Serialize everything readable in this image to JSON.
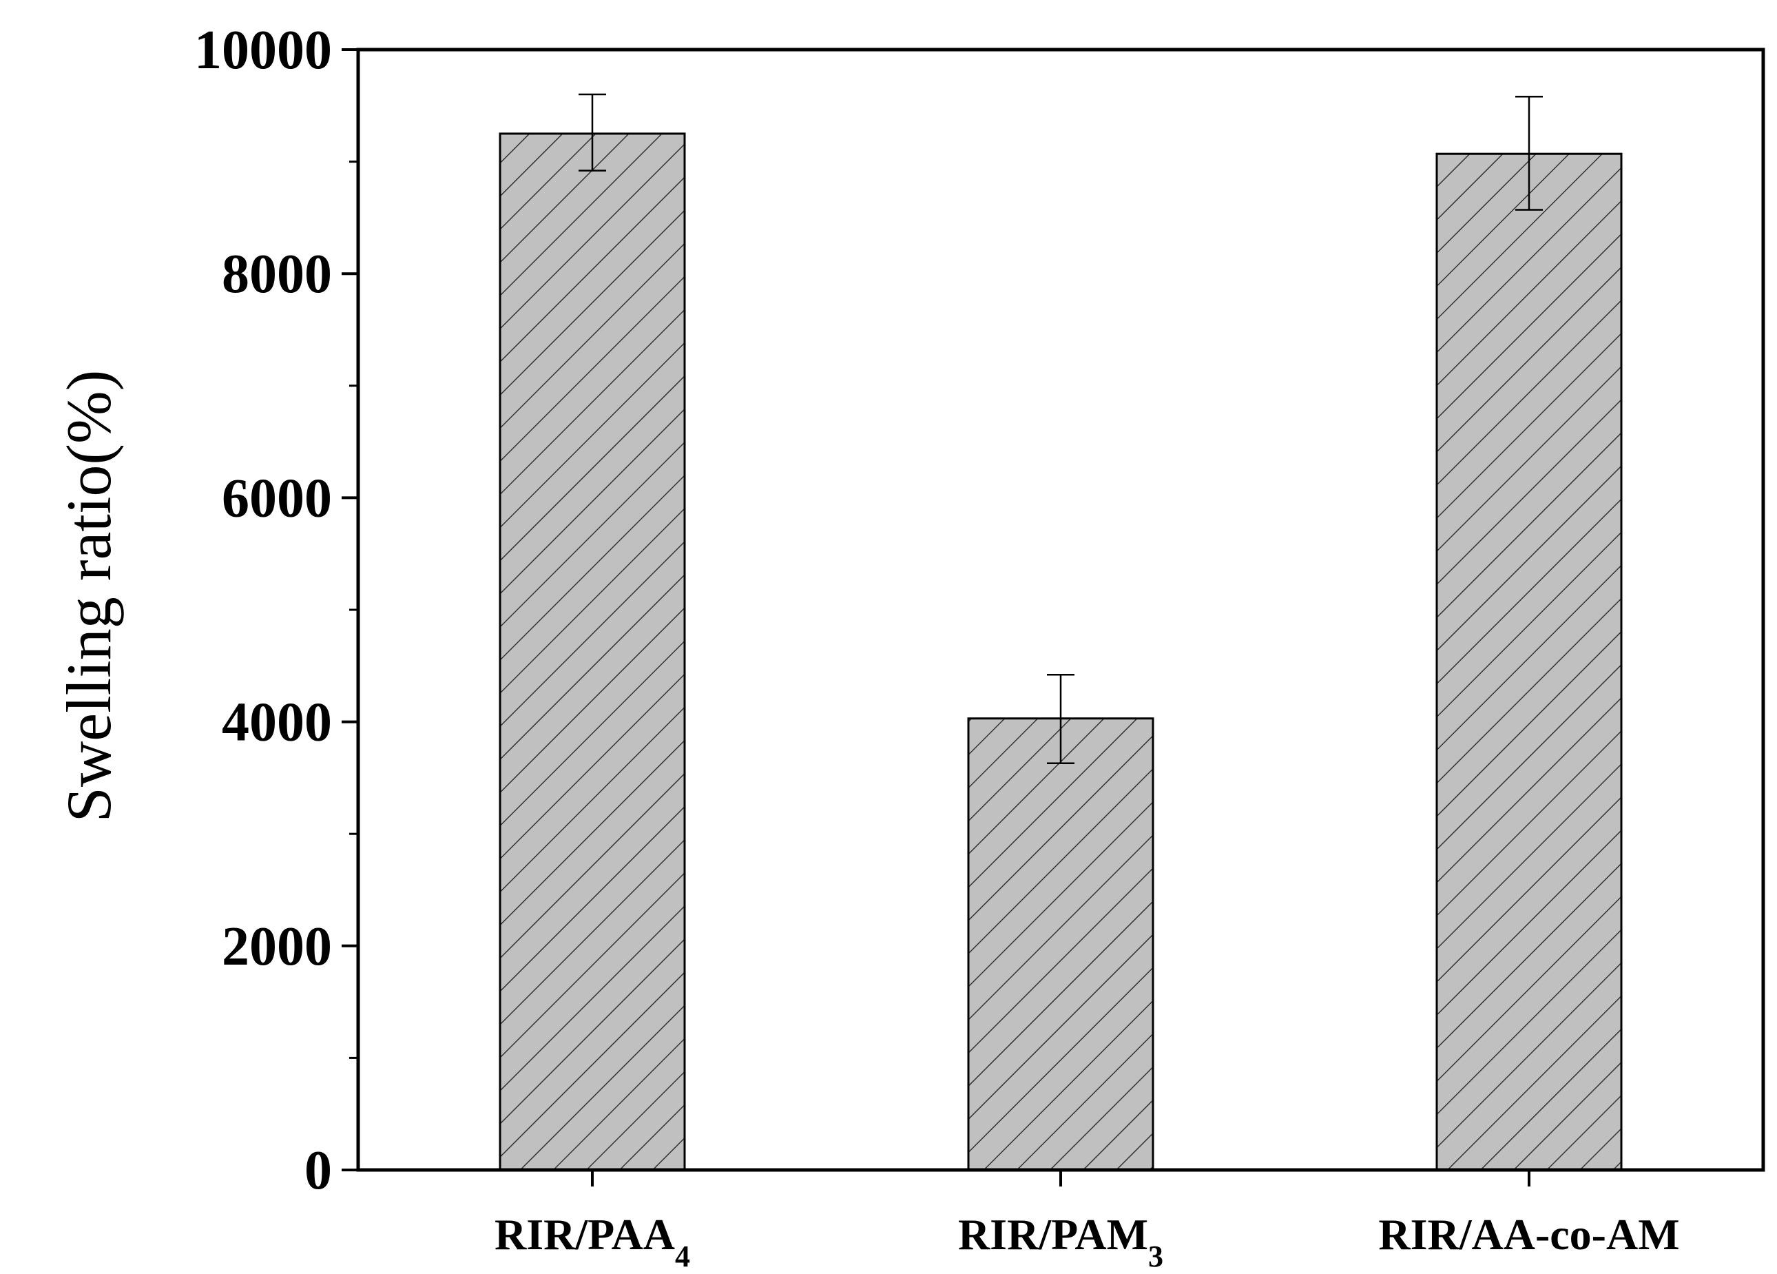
{
  "chart_data": {
    "type": "bar",
    "categories": [
      {
        "base": "RIR/PAA",
        "sub": "4"
      },
      {
        "base": "RIR/PAM",
        "sub": "3"
      },
      {
        "base": "RIR/AA-co-AM",
        "sub": ""
      }
    ],
    "values": [
      9250,
      4030,
      9070
    ],
    "errors": [
      {
        "low": 8920,
        "high": 9600
      },
      {
        "low": 3630,
        "high": 4420
      },
      {
        "low": 8570,
        "high": 9580
      }
    ],
    "ylabel": "Swelling ratio(%)",
    "xlabel": "",
    "ylim": [
      0,
      10000
    ],
    "yticks": [
      "0",
      "2000",
      "4000",
      "6000",
      "8000",
      "10000"
    ],
    "ytick_values": [
      0,
      2000,
      4000,
      6000,
      8000,
      10000
    ],
    "yminor_step": 1000,
    "bar_fill": "#c0c0c0",
    "hatch": "diagonal",
    "grid": false,
    "legend": "none"
  }
}
